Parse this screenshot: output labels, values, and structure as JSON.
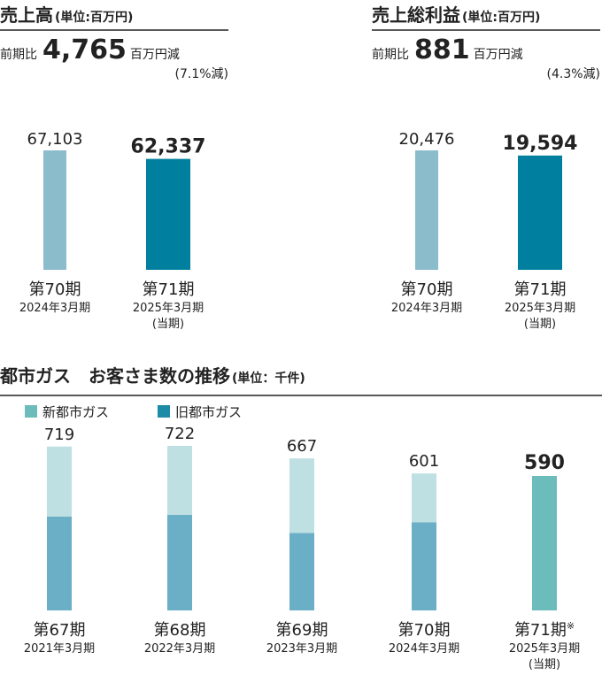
{
  "chart_data": [
    {
      "type": "bar",
      "title": "売上高",
      "unit": "(単位:百万円)",
      "comparison": {
        "prefix": "前期比",
        "amount": "4,765",
        "suffix": "百万円減",
        "rate": "(7.1%減)"
      },
      "categories": [
        "第70期",
        "第71期"
      ],
      "subcategories": [
        "2024年3月期",
        "2025年3月期"
      ],
      "notes": [
        null,
        "(当期)"
      ],
      "values": [
        67103,
        62337
      ],
      "value_labels": [
        "67,103",
        "62,337"
      ],
      "colors": [
        "#8bbccc",
        "#00809e"
      ]
    },
    {
      "type": "bar",
      "title": "売上総利益",
      "unit": "(単位:百万円)",
      "comparison": {
        "prefix": "前期比",
        "amount": "881",
        "suffix": "百万円減",
        "rate": "(4.3%減)"
      },
      "categories": [
        "第70期",
        "第71期"
      ],
      "subcategories": [
        "2024年3月期",
        "2025年3月期"
      ],
      "notes": [
        null,
        "(当期)"
      ],
      "values": [
        20476,
        19594
      ],
      "value_labels": [
        "20,476",
        "19,594"
      ],
      "colors": [
        "#8bbccc",
        "#00809e"
      ]
    },
    {
      "type": "stacked_bar",
      "title": "都市ガス　お客さま数の推移",
      "unit": "(単位：千件)",
      "categories": [
        "第67期",
        "第68期",
        "第69期",
        "第70期",
        "第71期"
      ],
      "category_marks": [
        null,
        null,
        null,
        null,
        "※"
      ],
      "subcategories": [
        "2021年3月期",
        "2022年3月期",
        "2023年3月期",
        "2024年3月期",
        "2025年3月期"
      ],
      "notes": [
        null,
        null,
        null,
        null,
        "(当期)"
      ],
      "totals": [
        719,
        722,
        667,
        601,
        590
      ],
      "series": [
        {
          "name": "旧都市ガス",
          "color": "#1d8aa6",
          "bar_colors": [
            "#6aafc6",
            "#6aafc6",
            "#6aafc6",
            "#6aafc6",
            "#6aafc6"
          ],
          "values": [
            412,
            420,
            340,
            387,
            null
          ]
        },
        {
          "name": "新都市ガス",
          "color": "#6cbcbb",
          "bar_colors": [
            "#bfe0e3",
            "#bfe0e3",
            "#bfe0e3",
            "#bfe0e3",
            "#6cbcbb"
          ],
          "values": [
            307,
            302,
            327,
            214,
            590
          ]
        }
      ]
    }
  ]
}
